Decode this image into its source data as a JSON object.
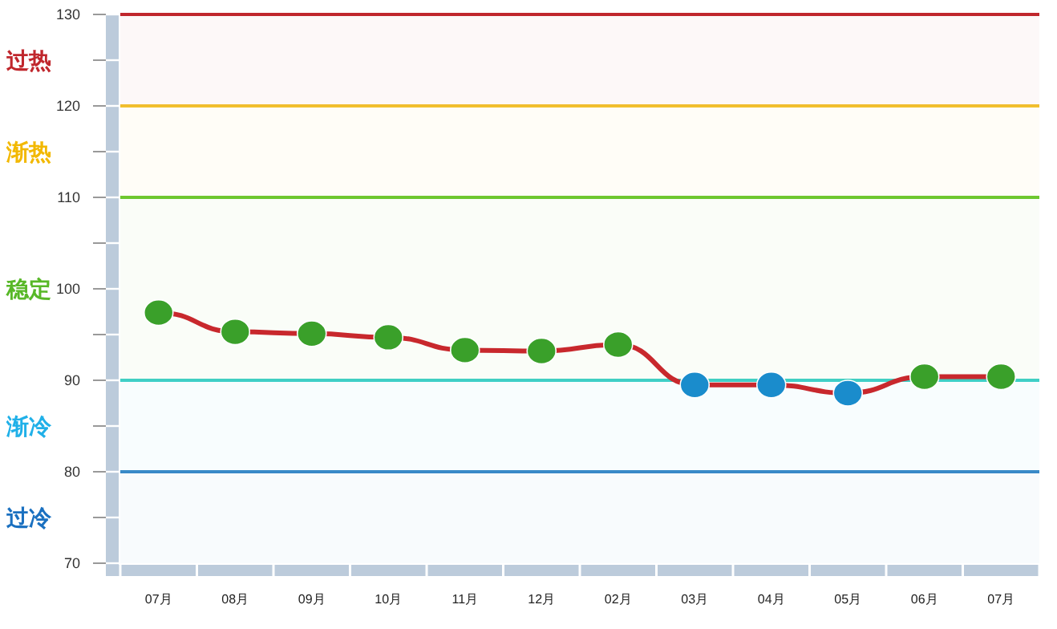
{
  "chart_data": {
    "type": "line",
    "categories": [
      "07月",
      "08月",
      "09月",
      "10月",
      "11月",
      "12月",
      "02月",
      "03月",
      "04月",
      "05月",
      "06月",
      "07月"
    ],
    "series": [
      {
        "color": "#c8282d",
        "colors": [
          "#3aa02a",
          "#3aa02a",
          "#3aa02a",
          "#3aa02a",
          "#3aa02a",
          "#3aa02a",
          "#3aa02a",
          "#1a8ccc",
          "#1a8ccc",
          "#1a8ccc",
          "#3aa02a",
          "#3aa02a"
        ],
        "values": [
          97.4,
          95.3,
          95.1,
          94.7,
          93.3,
          93.2,
          93.9,
          89.5,
          89.5,
          88.6,
          90.4,
          90.4
        ]
      }
    ],
    "ylim": [
      70,
      130
    ],
    "yticks": [
      70,
      {
        "value": 75,
        "label": null
      },
      80,
      {
        "value": 85,
        "label": null
      },
      90,
      {
        "value": 95,
        "label": null
      },
      100,
      {
        "value": 105,
        "label": null
      },
      110,
      {
        "value": 115,
        "label": null
      },
      120,
      {
        "value": 125,
        "label": null
      },
      130
    ],
    "ref_lines": [
      {
        "axis": "y",
        "value": 130,
        "color": "#c0272d"
      },
      {
        "axis": "y",
        "value": 120,
        "color": "#f2c230"
      },
      {
        "axis": "y",
        "value": 110,
        "color": "#6cc830"
      },
      {
        "axis": "y",
        "value": 90,
        "color": "#40d0c8"
      },
      {
        "axis": "y",
        "value": 80,
        "color": "#3a8ac8"
      }
    ],
    "bands": [
      {
        "axis": "y",
        "from": 120,
        "to": 130,
        "label": "过热",
        "color": "#c0272d"
      },
      {
        "axis": "y",
        "from": 110,
        "to": 120,
        "label": "渐热",
        "color": "#f2b800"
      },
      {
        "axis": "y",
        "from": 90,
        "to": 110,
        "label": "稳定",
        "color": "#58b828"
      },
      {
        "axis": "y",
        "from": 80,
        "to": 90,
        "label": "渐冷",
        "color": "#20b0e8"
      },
      {
        "axis": "y",
        "from": 70,
        "to": 80,
        "label": "过冷",
        "color": "#1a70c0"
      }
    ],
    "marker": "circle",
    "grid": false
  }
}
